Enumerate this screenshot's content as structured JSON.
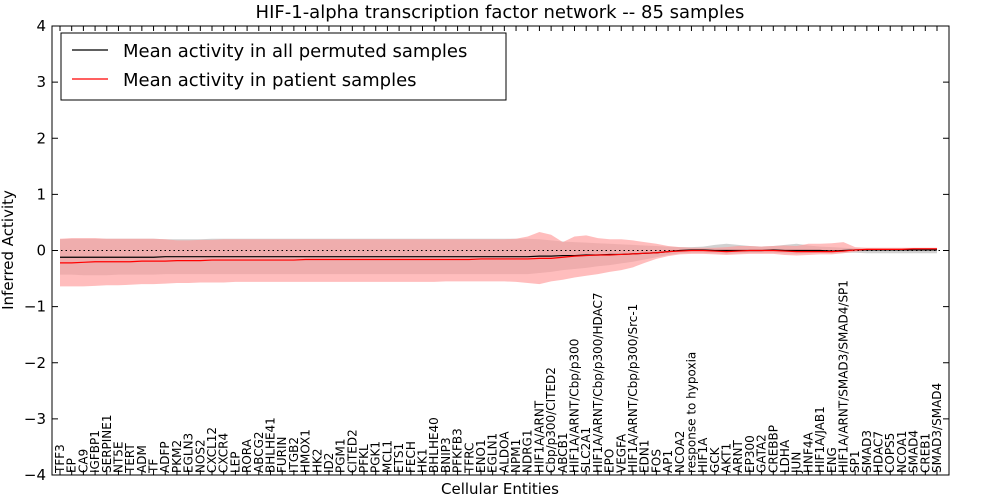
{
  "chart_data": {
    "type": "line",
    "title": "HIF-1-alpha transcription factor network -- 85 samples",
    "xlabel": "Cellular Entities",
    "ylabel": "Inferred Activity",
    "ylim": [
      -4,
      4
    ],
    "yticks": [
      -4,
      -3,
      -2,
      -1,
      0,
      1,
      2,
      3,
      4
    ],
    "grid": false,
    "legend_position": "top-left",
    "reference_line": 0,
    "colors": {
      "permuted_line": "#000000",
      "permuted_band": "#b3b3b3",
      "patient_line": "#ff0000",
      "patient_band": "#ff9a9a"
    },
    "categories": [
      "TFF3",
      "EP",
      "CA9",
      "IGFBP1",
      "SERPINE1",
      "NT5E",
      "TERT",
      "ADM",
      "TF",
      "ADFP",
      "PKM2",
      "EGLN3",
      "NOS2",
      "CXCL12",
      "CXCR4",
      "LEP",
      "RORA",
      "ABCG2",
      "BHLHE41",
      "FURIN",
      "ITGB2",
      "HMOX1",
      "HK2",
      "ID2",
      "PGM1",
      "CITED2",
      "PFKL",
      "PGK1",
      "MCL1",
      "ETS1",
      "FECH",
      "HK1",
      "BHLHE40",
      "BNIP3",
      "PFKFB3",
      "TFRC",
      "ENO1",
      "EGLN1",
      "ALDOA",
      "NPM1",
      "NDRG1",
      "HIF1A/ARNT",
      "Cbp/p300/CITED2",
      "ABCB1",
      "HIF1A/ARNT/Cbp/p300",
      "SLC2A1",
      "HIF1A/ARNT/Cbp/p300/HDAC7",
      "EPO",
      "VEGFA",
      "HIF1A/ARNT/Cbp/p300/Src-1",
      "EDN1",
      "FOS",
      "AP1",
      "NCOA2",
      "response to hypoxia",
      "HIF1A",
      "GCK",
      "AKT1",
      "ARNT",
      "EP300",
      "GATA2",
      "CREBBP",
      "LDHA",
      "JUN",
      "HNF4A",
      "HIF1A/JAB1",
      "ENG",
      "HIF1A/ARNT/SMAD3/SMAD4/SP1",
      "SP1",
      "SMAD3",
      "HDAC7",
      "COPS5",
      "NCOA1",
      "SMAD4",
      "CREB1",
      "SMAD3/SMAD4"
    ],
    "series": [
      {
        "name": "Mean activity in all permuted samples",
        "values": [
          -0.12,
          -0.12,
          -0.12,
          -0.12,
          -0.12,
          -0.12,
          -0.12,
          -0.12,
          -0.12,
          -0.11,
          -0.11,
          -0.11,
          -0.11,
          -0.11,
          -0.11,
          -0.11,
          -0.11,
          -0.11,
          -0.11,
          -0.11,
          -0.11,
          -0.11,
          -0.11,
          -0.11,
          -0.11,
          -0.11,
          -0.11,
          -0.11,
          -0.11,
          -0.11,
          -0.11,
          -0.11,
          -0.11,
          -0.11,
          -0.11,
          -0.11,
          -0.11,
          -0.11,
          -0.11,
          -0.11,
          -0.11,
          -0.1,
          -0.1,
          -0.09,
          -0.09,
          -0.08,
          -0.08,
          -0.07,
          -0.07,
          -0.06,
          -0.05,
          -0.04,
          -0.02,
          0.0,
          0.01,
          0.01,
          0.0,
          0.0,
          0.0,
          0.0,
          0.0,
          0.01,
          0.0,
          0.0,
          0.0,
          0.0,
          -0.01,
          0.0,
          0.01,
          0.01,
          0.01,
          0.01,
          0.01,
          0.01,
          0.01,
          0.01
        ],
        "upper": [
          0.2,
          0.21,
          0.21,
          0.21,
          0.21,
          0.21,
          0.21,
          0.21,
          0.21,
          0.2,
          0.2,
          0.2,
          0.2,
          0.21,
          0.21,
          0.21,
          0.21,
          0.21,
          0.21,
          0.21,
          0.21,
          0.21,
          0.21,
          0.21,
          0.21,
          0.21,
          0.21,
          0.21,
          0.21,
          0.21,
          0.21,
          0.21,
          0.21,
          0.21,
          0.21,
          0.21,
          0.21,
          0.21,
          0.21,
          0.21,
          0.21,
          0.2,
          0.18,
          0.16,
          0.15,
          0.14,
          0.13,
          0.12,
          0.11,
          0.1,
          0.09,
          0.08,
          0.07,
          0.06,
          0.06,
          0.07,
          0.1,
          0.12,
          0.1,
          0.08,
          0.07,
          0.08,
          0.1,
          0.12,
          0.09,
          0.07,
          0.06,
          0.05,
          0.04,
          0.04,
          0.04,
          0.04,
          0.04,
          0.04,
          0.04,
          0.04
        ],
        "lower": [
          -0.43,
          -0.43,
          -0.44,
          -0.44,
          -0.44,
          -0.43,
          -0.43,
          -0.43,
          -0.43,
          -0.42,
          -0.42,
          -0.42,
          -0.42,
          -0.42,
          -0.42,
          -0.42,
          -0.42,
          -0.42,
          -0.42,
          -0.42,
          -0.42,
          -0.42,
          -0.42,
          -0.42,
          -0.42,
          -0.42,
          -0.42,
          -0.42,
          -0.42,
          -0.42,
          -0.42,
          -0.42,
          -0.42,
          -0.42,
          -0.42,
          -0.42,
          -0.42,
          -0.42,
          -0.42,
          -0.42,
          -0.42,
          -0.4,
          -0.38,
          -0.35,
          -0.33,
          -0.31,
          -0.28,
          -0.26,
          -0.23,
          -0.2,
          -0.16,
          -0.12,
          -0.08,
          -0.05,
          -0.04,
          -0.04,
          -0.05,
          -0.06,
          -0.05,
          -0.04,
          -0.04,
          -0.04,
          -0.05,
          -0.06,
          -0.05,
          -0.04,
          -0.05,
          -0.04,
          -0.04,
          -0.05,
          -0.05,
          -0.05,
          -0.05,
          -0.05,
          -0.05,
          -0.05
        ]
      },
      {
        "name": "Mean activity in patient samples",
        "values": [
          -0.22,
          -0.22,
          -0.21,
          -0.2,
          -0.2,
          -0.2,
          -0.2,
          -0.19,
          -0.19,
          -0.19,
          -0.18,
          -0.18,
          -0.18,
          -0.17,
          -0.17,
          -0.17,
          -0.17,
          -0.17,
          -0.17,
          -0.17,
          -0.17,
          -0.16,
          -0.16,
          -0.16,
          -0.16,
          -0.16,
          -0.16,
          -0.16,
          -0.16,
          -0.16,
          -0.16,
          -0.16,
          -0.16,
          -0.16,
          -0.16,
          -0.16,
          -0.15,
          -0.15,
          -0.15,
          -0.15,
          -0.15,
          -0.14,
          -0.14,
          -0.12,
          -0.1,
          -0.09,
          -0.08,
          -0.08,
          -0.07,
          -0.06,
          -0.05,
          -0.04,
          -0.02,
          -0.01,
          0.0,
          0.0,
          -0.01,
          -0.02,
          -0.01,
          0.0,
          0.0,
          0.0,
          -0.01,
          -0.02,
          -0.02,
          -0.02,
          -0.02,
          -0.01,
          0.01,
          0.02,
          0.02,
          0.02,
          0.02,
          0.03,
          0.03,
          0.03
        ],
        "upper": [
          0.21,
          0.22,
          0.22,
          0.22,
          0.21,
          0.21,
          0.21,
          0.21,
          0.21,
          0.2,
          0.18,
          0.18,
          0.19,
          0.19,
          0.2,
          0.2,
          0.2,
          0.2,
          0.2,
          0.2,
          0.2,
          0.2,
          0.2,
          0.2,
          0.2,
          0.2,
          0.2,
          0.2,
          0.2,
          0.2,
          0.2,
          0.2,
          0.2,
          0.2,
          0.2,
          0.2,
          0.2,
          0.2,
          0.2,
          0.21,
          0.25,
          0.33,
          0.28,
          0.15,
          0.25,
          0.27,
          0.22,
          0.2,
          0.2,
          0.18,
          0.15,
          0.12,
          0.08,
          0.06,
          0.05,
          0.05,
          0.05,
          0.06,
          0.08,
          0.08,
          0.07,
          0.08,
          0.09,
          0.08,
          0.12,
          0.12,
          0.13,
          0.15,
          0.06,
          0.05,
          0.05,
          0.05,
          0.05,
          0.05,
          0.05,
          0.05
        ],
        "lower": [
          -0.64,
          -0.64,
          -0.64,
          -0.63,
          -0.62,
          -0.62,
          -0.61,
          -0.6,
          -0.6,
          -0.59,
          -0.58,
          -0.58,
          -0.57,
          -0.57,
          -0.57,
          -0.56,
          -0.56,
          -0.56,
          -0.56,
          -0.56,
          -0.56,
          -0.56,
          -0.56,
          -0.56,
          -0.56,
          -0.56,
          -0.56,
          -0.56,
          -0.56,
          -0.56,
          -0.56,
          -0.56,
          -0.56,
          -0.55,
          -0.55,
          -0.55,
          -0.55,
          -0.55,
          -0.55,
          -0.56,
          -0.58,
          -0.6,
          -0.55,
          -0.52,
          -0.48,
          -0.45,
          -0.42,
          -0.38,
          -0.35,
          -0.3,
          -0.22,
          -0.15,
          -0.1,
          -0.07,
          -0.06,
          -0.06,
          -0.07,
          -0.08,
          -0.07,
          -0.06,
          -0.06,
          -0.06,
          -0.08,
          -0.09,
          -0.08,
          -0.07,
          -0.07,
          -0.05,
          -0.02,
          0.0,
          0.0,
          0.0,
          0.0,
          0.0,
          0.0,
          0.0
        ]
      }
    ]
  }
}
